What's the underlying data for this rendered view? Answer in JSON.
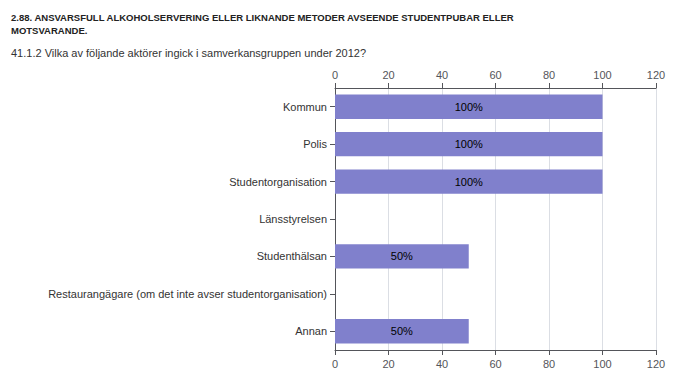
{
  "chart_data": {
    "type": "bar",
    "orientation": "horizontal",
    "title": "2.88. ANSVARSFULL ALKOHOLSERVERING ELLER LIKNANDE METODER AVSEENDE STUDENTPUBAR ELLER\nMOTSVARANDE.",
    "subtitle": "41.1.2 Vilka av följande aktörer ingick i samverkansgruppen under 2012?",
    "categories": [
      "Kommun",
      "Polis",
      "Studentorganisation",
      "Länsstyrelsen",
      "Studenthälsan",
      "Restaurangägare (om det inte avser studentorganisation)",
      "Annan"
    ],
    "values": [
      100,
      100,
      100,
      0,
      50,
      0,
      50
    ],
    "value_labels": [
      "100%",
      "100%",
      "100%",
      null,
      "50%",
      null,
      "50%"
    ],
    "data_labels": true,
    "color": "#8080cc",
    "xlim": [
      0,
      120
    ],
    "xticks": [
      0,
      20,
      40,
      60,
      80,
      100,
      120
    ],
    "grid": true
  }
}
